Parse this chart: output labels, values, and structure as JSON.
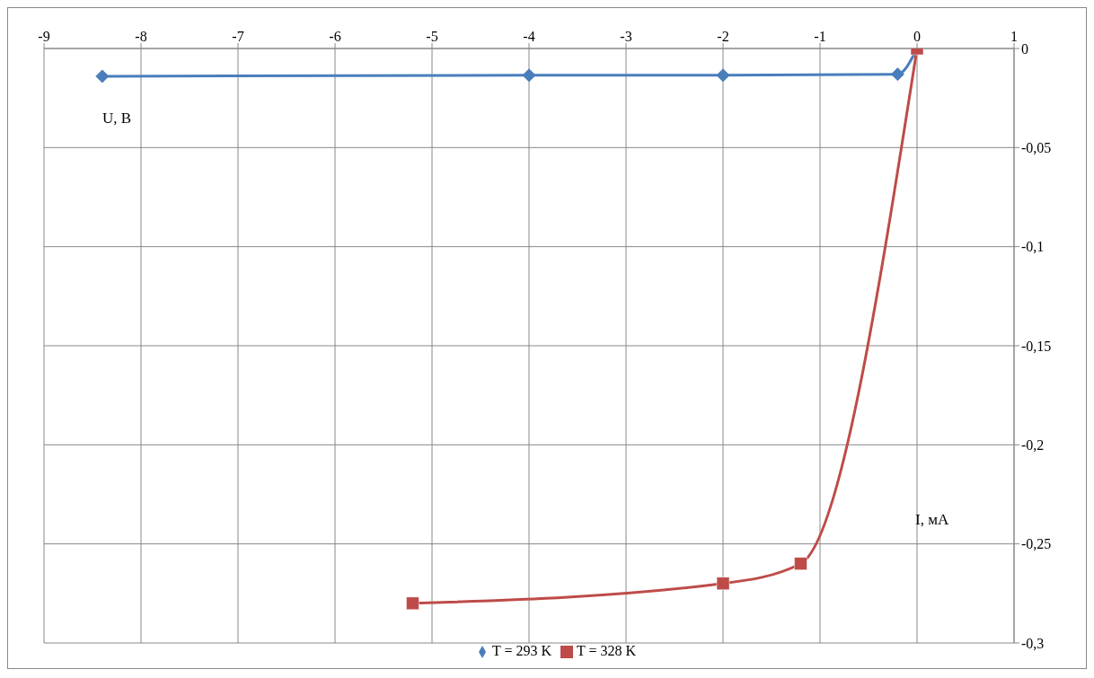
{
  "chart_data": {
    "type": "line",
    "xlabel": "I, мА",
    "ylabel": "U, В",
    "xlim": [
      -9,
      1
    ],
    "xticks": [
      -9,
      -8,
      -7,
      -6,
      -5,
      -4,
      -3,
      -2,
      -1,
      0,
      1
    ],
    "ylim": [
      -0.3,
      0
    ],
    "yticks": [
      {
        "value": -0.3,
        "label": "-0,3"
      },
      {
        "value": -0.25,
        "label": "-0,25"
      },
      {
        "value": -0.2,
        "label": "-0,2"
      },
      {
        "value": -0.15,
        "label": "-0,15"
      },
      {
        "value": -0.1,
        "label": "-0,1"
      },
      {
        "value": -0.05,
        "label": "-0,05"
      },
      {
        "value": 0,
        "label": "0"
      }
    ],
    "grid": true,
    "legend": "bottom",
    "series": [
      {
        "name": "T = 293 K",
        "color": "#4a7ebb",
        "marker": "diamond",
        "x": [
          -8.4,
          -4,
          -2,
          -0.2,
          0
        ],
        "values": [
          -0.014,
          -0.0135,
          -0.0135,
          -0.013,
          0
        ]
      },
      {
        "name": "T = 328 K",
        "color": "#be4b48",
        "marker": "square",
        "x": [
          -5.2,
          -2,
          -1.2,
          0
        ],
        "values": [
          -0.28,
          -0.27,
          -0.26,
          0
        ]
      }
    ]
  }
}
